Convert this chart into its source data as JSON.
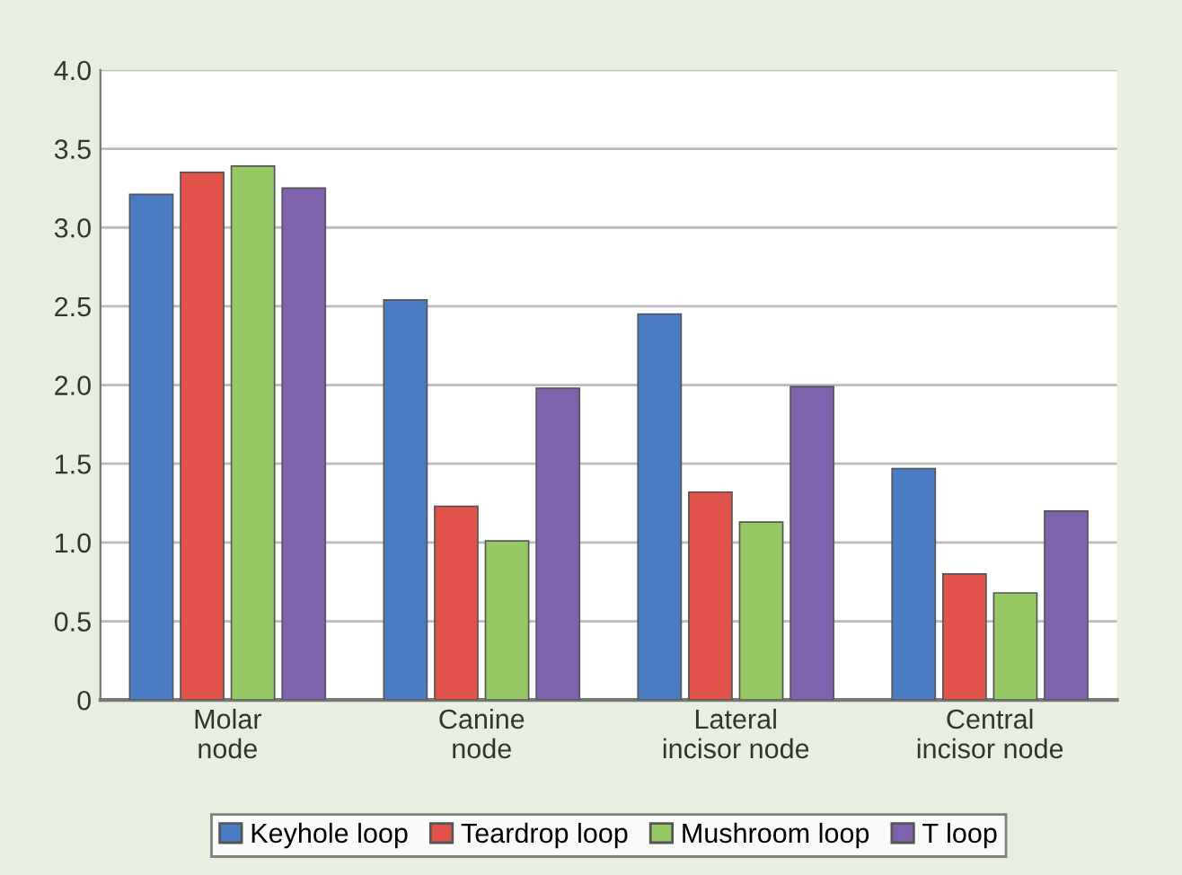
{
  "chart_data": {
    "type": "bar",
    "categories": [
      "Molar\nnode",
      "Canine\nnode",
      "Lateral\nincisor node",
      "Central\nincisor node"
    ],
    "series": [
      {
        "name": "Keyhole loop",
        "color": "#4a7cc4",
        "values": [
          3.21,
          2.54,
          2.45,
          1.47
        ]
      },
      {
        "name": "Teardrop loop",
        "color": "#e0524a",
        "values": [
          3.35,
          1.23,
          1.32,
          0.8
        ]
      },
      {
        "name": "Mushroom loop",
        "color": "#96c964",
        "values": [
          3.39,
          1.01,
          1.13,
          0.68
        ]
      },
      {
        "name": "T loop",
        "color": "#7e62ad",
        "values": [
          3.25,
          1.98,
          1.99,
          1.2
        ]
      }
    ],
    "ylim": [
      0,
      4.0
    ],
    "yticks": [
      {
        "value": 0,
        "label": "0"
      },
      {
        "value": 0.5,
        "label": "0.5"
      },
      {
        "value": 1.0,
        "label": "1.0"
      },
      {
        "value": 1.5,
        "label": "1.5"
      },
      {
        "value": 2.0,
        "label": "2.0"
      },
      {
        "value": 2.5,
        "label": "2.5"
      },
      {
        "value": 3.0,
        "label": "3.0"
      },
      {
        "value": 3.5,
        "label": "3.5"
      },
      {
        "value": 4.0,
        "label": "4.0"
      }
    ],
    "grid": "y",
    "legend": "bottom"
  }
}
